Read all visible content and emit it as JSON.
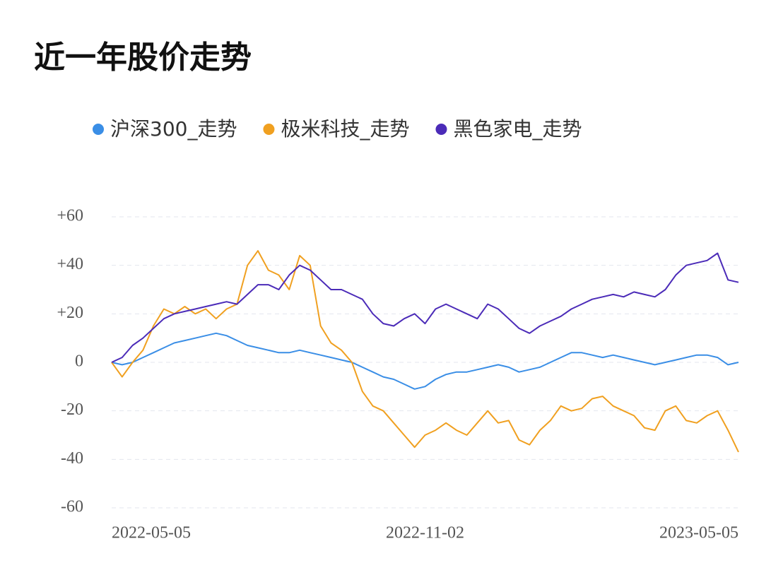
{
  "chart_data": {
    "type": "line",
    "title": "近一年股价走势",
    "categories": [
      "2022-05-05",
      null,
      null,
      null,
      null,
      null,
      null,
      null,
      null,
      null,
      null,
      null,
      null,
      null,
      null,
      null,
      null,
      null,
      null,
      null,
      null,
      null,
      null,
      null,
      null,
      null,
      null,
      null,
      null,
      null,
      "2022-11-02",
      null,
      null,
      null,
      null,
      null,
      null,
      null,
      null,
      null,
      null,
      null,
      null,
      null,
      null,
      null,
      null,
      null,
      null,
      null,
      null,
      null,
      null,
      null,
      null,
      null,
      null,
      null,
      null,
      null,
      "2023-05-05"
    ],
    "series": [
      {
        "name": "沪深300_走势",
        "color": "#3a8ee6",
        "values": [
          0,
          -1,
          0,
          2,
          4,
          6,
          8,
          9,
          10,
          11,
          12,
          11,
          9,
          7,
          6,
          5,
          4,
          4,
          5,
          4,
          3,
          2,
          1,
          0,
          -2,
          -4,
          -6,
          -7,
          -9,
          -11,
          -10,
          -7,
          -5,
          -4,
          -4,
          -3,
          -2,
          -1,
          -2,
          -4,
          -3,
          -2,
          0,
          2,
          4,
          4,
          3,
          2,
          3,
          2,
          1,
          0,
          -1,
          0,
          1,
          2,
          3,
          3,
          2,
          -1,
          0
        ]
      },
      {
        "name": "极米科技_走势",
        "color": "#f0a020",
        "values": [
          0,
          -6,
          0,
          5,
          15,
          22,
          20,
          23,
          20,
          22,
          18,
          22,
          24,
          40,
          46,
          38,
          36,
          30,
          44,
          40,
          15,
          8,
          5,
          0,
          -12,
          -18,
          -20,
          -25,
          -30,
          -35,
          -30,
          -28,
          -25,
          -28,
          -30,
          -25,
          -20,
          -25,
          -24,
          -32,
          -34,
          -28,
          -24,
          -18,
          -20,
          -19,
          -15,
          -14,
          -18,
          -20,
          -22,
          -27,
          -28,
          -20,
          -18,
          -24,
          -25,
          -22,
          -20,
          -28,
          -37
        ]
      },
      {
        "name": "黑色家电_走势",
        "color": "#4b2bb8",
        "values": [
          0,
          2,
          7,
          10,
          14,
          18,
          20,
          21,
          22,
          23,
          24,
          25,
          24,
          28,
          32,
          32,
          30,
          36,
          40,
          38,
          34,
          30,
          30,
          28,
          26,
          20,
          16,
          15,
          18,
          20,
          16,
          22,
          24,
          22,
          20,
          18,
          24,
          22,
          18,
          14,
          12,
          15,
          17,
          19,
          22,
          24,
          26,
          27,
          28,
          27,
          29,
          28,
          27,
          30,
          36,
          40,
          41,
          42,
          45,
          34,
          33
        ]
      }
    ],
    "ylim": [
      -60,
      60
    ],
    "yticks": [
      {
        "value": 60,
        "label": "+60"
      },
      {
        "value": 40,
        "label": "+40"
      },
      {
        "value": 20,
        "label": "+20"
      },
      0,
      -20,
      -40,
      -60
    ],
    "grid": true
  }
}
